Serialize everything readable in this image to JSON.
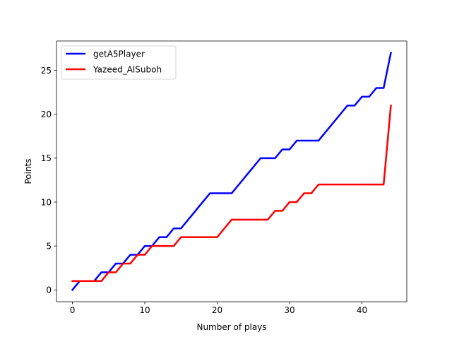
{
  "chart_data": {
    "type": "line",
    "title": "",
    "xlabel": "Number of plays",
    "ylabel": "Points",
    "xlim": [
      -2.2,
      46.2
    ],
    "ylim": [
      -1.35,
      28.35
    ],
    "xticks": [
      0,
      10,
      20,
      30,
      40
    ],
    "yticks": [
      0,
      5,
      10,
      15,
      20,
      25
    ],
    "grid": false,
    "legend_position": "top-left",
    "series": [
      {
        "name": "getA5Player",
        "color": "#0000ff",
        "x": [
          0,
          1,
          2,
          3,
          4,
          5,
          6,
          7,
          8,
          9,
          10,
          11,
          12,
          13,
          14,
          15,
          16,
          17,
          18,
          19,
          20,
          21,
          22,
          23,
          24,
          25,
          26,
          27,
          28,
          29,
          30,
          31,
          32,
          33,
          34,
          35,
          36,
          37,
          38,
          39,
          40,
          41,
          42,
          43,
          44
        ],
        "y": [
          0,
          1,
          1,
          1,
          2,
          2,
          3,
          3,
          4,
          4,
          5,
          5,
          6,
          6,
          7,
          7,
          8,
          9,
          10,
          11,
          11,
          11,
          11,
          12,
          13,
          14,
          15,
          15,
          15,
          16,
          16,
          17,
          17,
          17,
          17,
          18,
          19,
          20,
          21,
          21,
          22,
          22,
          23,
          23,
          27
        ]
      },
      {
        "name": "Yazeed_AlSuboh",
        "color": "#ff0000",
        "x": [
          0,
          1,
          2,
          3,
          4,
          5,
          6,
          7,
          8,
          9,
          10,
          11,
          12,
          13,
          14,
          15,
          16,
          17,
          18,
          19,
          20,
          21,
          22,
          23,
          24,
          25,
          26,
          27,
          28,
          29,
          30,
          31,
          32,
          33,
          34,
          35,
          36,
          37,
          38,
          39,
          40,
          41,
          42,
          43,
          44
        ],
        "y": [
          1,
          1,
          1,
          1,
          1,
          2,
          2,
          3,
          3,
          4,
          4,
          5,
          5,
          5,
          5,
          6,
          6,
          6,
          6,
          6,
          6,
          7,
          8,
          8,
          8,
          8,
          8,
          8,
          9,
          9,
          10,
          10,
          11,
          11,
          12,
          12,
          12,
          12,
          12,
          12,
          12,
          12,
          12,
          12,
          21
        ]
      }
    ]
  }
}
